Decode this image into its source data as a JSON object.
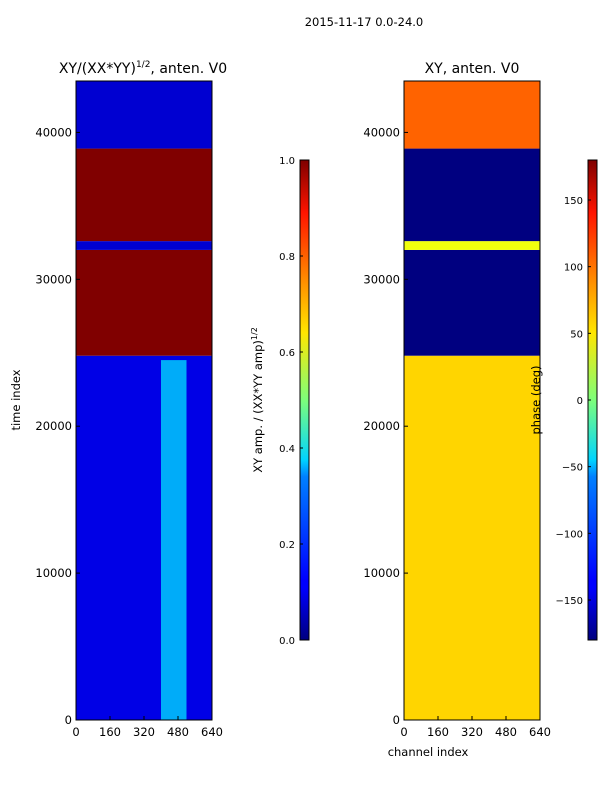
{
  "suptitle": "2015-11-17 0.0-24.0",
  "colors": {
    "low": "#00007f",
    "high": "#7f0000"
  },
  "chart_data": [
    {
      "type": "heatmap",
      "title": "XY/(XX*YY)^1/2, anten. V0",
      "title_main": "XY/(XX*YY)",
      "title_exp": "1/2",
      "title_tail": ", anten. V0",
      "xlabel": "",
      "ylabel": "time index",
      "xlim": [
        0,
        640
      ],
      "ylim": [
        0,
        43500
      ],
      "xticks": [
        0,
        160,
        320,
        480,
        640
      ],
      "yticks": [
        0,
        10000,
        20000,
        30000,
        40000
      ],
      "colorbar": {
        "label_main": "XY amp. / (XX*YY amp)",
        "label_exp": "1/2",
        "range": [
          0.0,
          1.0
        ],
        "ticks": [
          0.0,
          0.2,
          0.4,
          0.6,
          0.8,
          1.0
        ],
        "tick_labels": [
          "0.0",
          "0.2",
          "0.4",
          "0.6",
          "0.8",
          "1.0"
        ]
      },
      "bands": [
        {
          "t0": 0,
          "t1": 24800,
          "value": 0.1
        },
        {
          "t0": 24800,
          "t1": 32000,
          "value": 1.0
        },
        {
          "t0": 32000,
          "t1": 32600,
          "value": 0.08
        },
        {
          "t0": 32600,
          "t1": 38900,
          "value": 1.0
        },
        {
          "t0": 38900,
          "t1": 43500,
          "value": 0.08
        }
      ],
      "hot_region": {
        "x0": 400,
        "x1": 520,
        "t0": 0,
        "t1": 24500,
        "value": 0.35
      }
    },
    {
      "type": "heatmap",
      "title": "XY, anten. V0",
      "xlabel": "channel index",
      "ylabel": "",
      "xlim": [
        0,
        640
      ],
      "ylim": [
        0,
        43500
      ],
      "xticks": [
        0,
        160,
        320,
        480,
        640
      ],
      "yticks": [
        0,
        10000,
        20000,
        30000,
        40000
      ],
      "colorbar": {
        "label_main": "phase (deg)",
        "label_exp": "",
        "range": [
          -180,
          180
        ],
        "ticks": [
          -150,
          -100,
          -50,
          0,
          50,
          100,
          150
        ],
        "tick_labels": [
          "−150",
          "−100",
          "−50",
          "0",
          "50",
          "100",
          "150"
        ]
      },
      "bands": [
        {
          "t0": 0,
          "t1": 24800,
          "value": 60
        },
        {
          "t0": 24800,
          "t1": 32000,
          "value": -180
        },
        {
          "t0": 32000,
          "t1": 32600,
          "value": 40
        },
        {
          "t0": 32600,
          "t1": 38900,
          "value": -180
        },
        {
          "t0": 38900,
          "t1": 43500,
          "value": 100
        }
      ]
    }
  ]
}
